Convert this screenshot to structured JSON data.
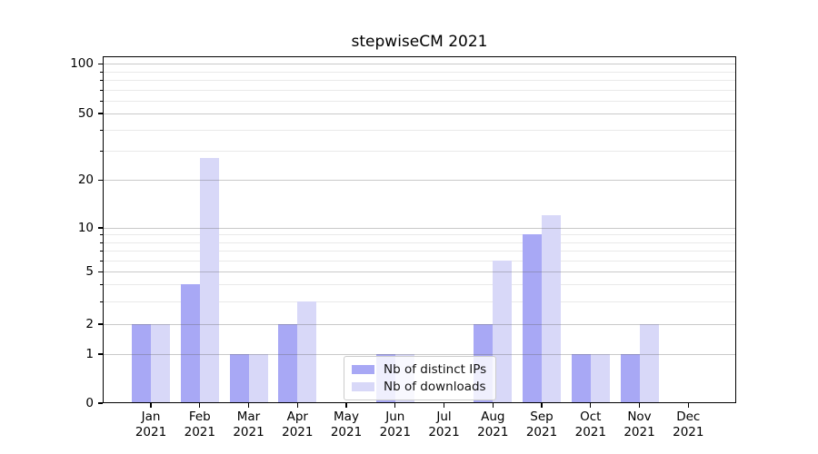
{
  "chart_data": {
    "type": "bar",
    "title": "stepwiseCM 2021",
    "categories": [
      "Jan",
      "Feb",
      "Mar",
      "Apr",
      "May",
      "Jun",
      "Jul",
      "Aug",
      "Sep",
      "Oct",
      "Nov",
      "Dec"
    ],
    "category_year": "2021",
    "series": [
      {
        "name": "Nb of distinct IPs",
        "color": "#a8a8f5",
        "values": [
          2,
          4,
          1,
          2,
          0,
          1,
          0,
          2,
          9,
          1,
          1,
          0
        ]
      },
      {
        "name": "Nb of downloads",
        "color": "#d8d8f8",
        "values": [
          2,
          27,
          1,
          3,
          0,
          1,
          0,
          6,
          12,
          1,
          2,
          0
        ]
      }
    ],
    "y_axis": {
      "scale": "symlog",
      "tick_values": [
        0,
        1,
        2,
        5,
        10,
        20,
        50,
        100
      ],
      "minor_tick_values": [
        3,
        4,
        6,
        7,
        8,
        9,
        30,
        40,
        60,
        70,
        80,
        90
      ],
      "ylim": [
        0,
        110
      ]
    },
    "grid": true,
    "legend": {
      "position": "lower center",
      "entries": [
        "Nb of distinct IPs",
        "Nb of downloads"
      ]
    }
  }
}
